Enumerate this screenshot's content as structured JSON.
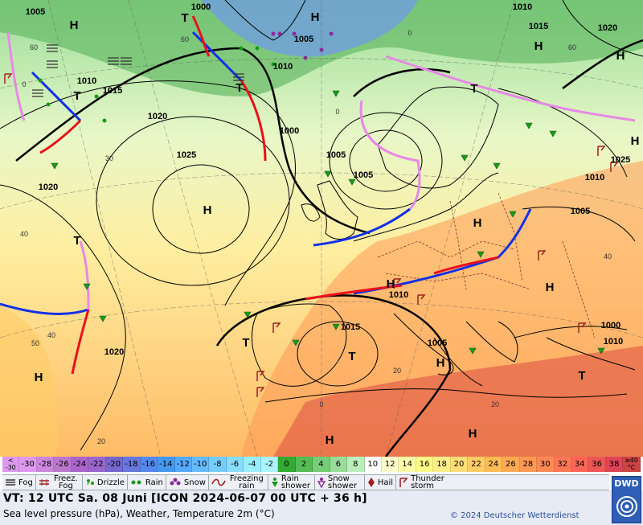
{
  "map": {
    "isobar_labels": [
      "1005",
      "1010",
      "1015",
      "1020",
      "1025",
      "1000",
      "1005",
      "1010",
      "1000",
      "1005",
      "1005",
      "1010",
      "1015",
      "1020",
      "1025",
      "1010",
      "1005",
      "1000",
      "1010",
      "1015",
      "1010",
      "1005",
      "1020",
      "1020"
    ],
    "pressure_centers": [
      "H",
      "H",
      "H",
      "H",
      "H",
      "H",
      "H",
      "H",
      "H",
      "H",
      "H",
      "H",
      "H",
      "T",
      "T",
      "T",
      "T",
      "T",
      "T",
      "T",
      "T"
    ],
    "temperature_labels": [
      "60",
      "60",
      "60",
      "40",
      "40",
      "40",
      "20",
      "20",
      "20",
      "30",
      "50",
      "0",
      "0",
      "0",
      "0"
    ],
    "colors": {
      "warm_front": "#e8101a",
      "cold_front": "#1030e8",
      "occluded_front": "#e888e8",
      "isobar": "#000000",
      "rain_symbol": "#1a9a1a",
      "thunder_symbol": "#a02020"
    }
  },
  "temperature_scale": {
    "unit": "°C",
    "first_label_top": "<",
    "first_label_bottom": "-30",
    "last_label_top": "≥40",
    "last_label_bottom": "°C",
    "values": [
      "-30",
      "-28",
      "-26",
      "-24",
      "-22",
      "-20",
      "-18",
      "-16",
      "-14",
      "-12",
      "-10",
      "-8",
      "-6",
      "-4",
      "-2",
      "0",
      "2",
      "4",
      "6",
      "8",
      "10",
      "12",
      "14",
      "16",
      "18",
      "20",
      "22",
      "24",
      "26",
      "28",
      "30",
      "32",
      "34",
      "36",
      "38"
    ],
    "colors": [
      "#dd99ee",
      "#cc88dd",
      "#bb77cc",
      "#aa66cc",
      "#9966cc",
      "#7766cc",
      "#6677dd",
      "#5588ee",
      "#4499ee",
      "#55aaff",
      "#66bbff",
      "#77ccff",
      "#88ddff",
      "#99eeff",
      "#aaf5ff",
      "#33aa33",
      "#55bb55",
      "#77cc77",
      "#99dd99",
      "#bbeebb",
      "#ffffff",
      "#ffffcc",
      "#ffffaa",
      "#ffff88",
      "#ffee88",
      "#ffdd77",
      "#ffcc66",
      "#ffbb55",
      "#ffaa55",
      "#ff9955",
      "#ff8855",
      "#ff7755",
      "#ff6655",
      "#ee5555",
      "#dd4455"
    ]
  },
  "legend": {
    "fog": "Fog",
    "freezing_fog": "Freez. Fog",
    "drizzle": "Drizzle",
    "rain": "Rain",
    "snow": "Snow",
    "freezing_rain": "Freezing rain",
    "rain_shower": "Rain shower",
    "snow_shower": "Snow shower",
    "hail": "Hail",
    "thunderstorm": "Thunder storm"
  },
  "footer": {
    "valid_time": "VT: 12 UTC Sa.  08 Juni [ICON 2024-06-07  00 UTC + 36 h]",
    "description": "Sea level pressure (hPa), Weather, Temperature 2m (°C)",
    "copyright": "© 2024 Deutscher Wetterdienst",
    "logo_text": "DWD"
  }
}
